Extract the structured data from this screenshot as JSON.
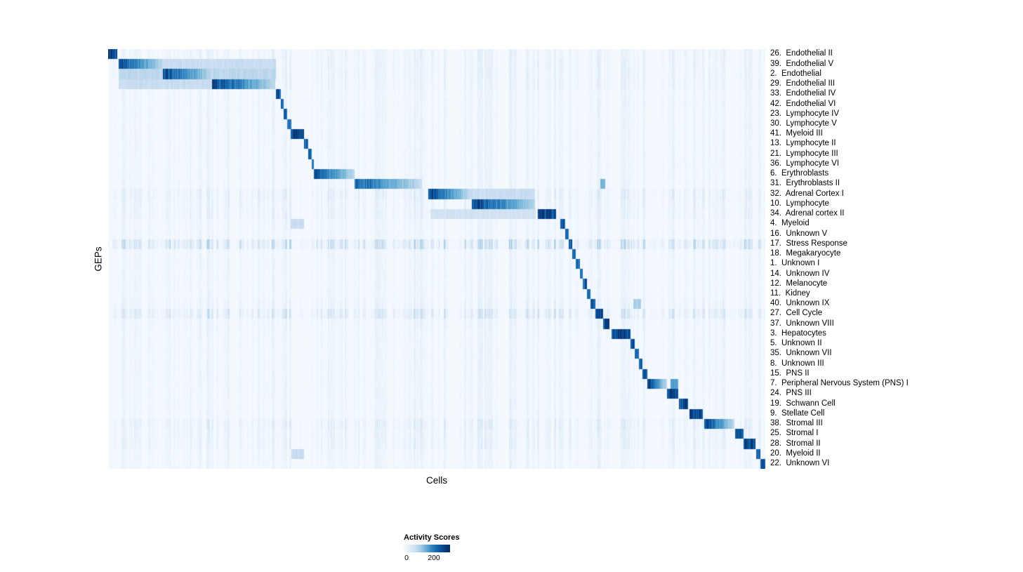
{
  "chart_data": {
    "type": "heatmap",
    "title": "",
    "xlabel": "Cells",
    "ylabel": "GEPs",
    "colorbar": {
      "title": "Activity Scores",
      "min_label": "0",
      "max_label": "200",
      "colormap": "Blues",
      "value_range": [
        0,
        230
      ]
    },
    "n_rows": 42,
    "rows": [
      {
        "label": "26.  Endothelial II",
        "bg": 0.07,
        "blocks": [
          [
            0.0,
            0.013,
            215
          ]
        ]
      },
      {
        "label": "39.  Endothelial V",
        "bg": 0.07,
        "blocks": [
          [
            0.015,
            0.083,
            210
          ],
          [
            0.083,
            0.255,
            55
          ]
        ]
      },
      {
        "label": "2.  Endothelial",
        "bg": 0.07,
        "blocks": [
          [
            0.015,
            0.083,
            65
          ],
          [
            0.083,
            0.158,
            210
          ],
          [
            0.158,
            0.255,
            65
          ]
        ]
      },
      {
        "label": "29.  Endothelial III",
        "bg": 0.07,
        "blocks": [
          [
            0.015,
            0.158,
            55
          ],
          [
            0.158,
            0.254,
            215
          ]
        ]
      },
      {
        "label": "33.  Endothelial IV",
        "bg": 0.05,
        "blocks": [
          [
            0.255,
            0.262,
            195
          ]
        ]
      },
      {
        "label": "42.  Endothelial VI",
        "bg": 0.05,
        "blocks": [
          [
            0.262,
            0.267,
            185
          ]
        ]
      },
      {
        "label": "23.  Lymphocyte IV",
        "bg": 0.05,
        "blocks": [
          [
            0.267,
            0.272,
            180
          ]
        ]
      },
      {
        "label": "30.  Lymphocyte V",
        "bg": 0.05,
        "blocks": [
          [
            0.272,
            0.278,
            190
          ]
        ]
      },
      {
        "label": "41.  Myeloid III",
        "bg": 0.05,
        "blocks": [
          [
            0.277,
            0.298,
            215
          ]
        ]
      },
      {
        "label": "13.  Lymphocyte II",
        "bg": 0.05,
        "blocks": [
          [
            0.298,
            0.304,
            190
          ]
        ]
      },
      {
        "label": "21.  Lymphocyte III",
        "bg": 0.05,
        "blocks": [
          [
            0.304,
            0.309,
            180
          ]
        ]
      },
      {
        "label": "36.  Lymphocyte VI",
        "bg": 0.05,
        "blocks": [
          [
            0.309,
            0.313,
            170
          ]
        ]
      },
      {
        "label": "6.  Erythroblasts",
        "bg": 0.05,
        "blocks": [
          [
            0.313,
            0.375,
            205
          ]
        ]
      },
      {
        "label": "31.  Erythroblasts II",
        "bg": 0.05,
        "blocks": [
          [
            0.375,
            0.477,
            190
          ],
          [
            0.748,
            0.756,
            110
          ]
        ]
      },
      {
        "label": "32.  Adrenal Cortex I",
        "bg": 0.1,
        "blocks": [
          [
            0.487,
            0.549,
            215
          ],
          [
            0.549,
            0.649,
            55
          ]
        ]
      },
      {
        "label": "10.  Lymphocyte",
        "bg": 0.08,
        "blocks": [
          [
            0.553,
            0.649,
            220
          ]
        ]
      },
      {
        "label": "34.  Adrenal cortex II",
        "bg": 0.08,
        "blocks": [
          [
            0.49,
            0.65,
            45
          ],
          [
            0.653,
            0.681,
            215
          ]
        ]
      },
      {
        "label": "4.  Myeloid",
        "bg": 0.05,
        "blocks": [
          [
            0.277,
            0.298,
            55
          ],
          [
            0.687,
            0.695,
            195
          ]
        ]
      },
      {
        "label": "16.  Unknown V",
        "bg": 0.05,
        "blocks": [
          [
            0.695,
            0.7,
            185
          ]
        ]
      },
      {
        "label": "17.  Stress Response",
        "bg": 0.22,
        "blocks": [
          [
            0.7,
            0.706,
            195
          ]
        ]
      },
      {
        "label": "18.  Megakaryocyte",
        "bg": 0.05,
        "blocks": [
          [
            0.706,
            0.711,
            190
          ]
        ]
      },
      {
        "label": "1.  Unknown I",
        "bg": 0.05,
        "blocks": [
          [
            0.711,
            0.717,
            180
          ]
        ]
      },
      {
        "label": "14.  Unknown IV",
        "bg": 0.05,
        "blocks": [
          [
            0.717,
            0.722,
            180
          ]
        ]
      },
      {
        "label": "12.  Melanocyte",
        "bg": 0.05,
        "blocks": [
          [
            0.722,
            0.728,
            195
          ]
        ]
      },
      {
        "label": "11.  Kidney",
        "bg": 0.05,
        "blocks": [
          [
            0.728,
            0.733,
            195
          ]
        ]
      },
      {
        "label": "40.  Unknown IX",
        "bg": 0.07,
        "blocks": [
          [
            0.733,
            0.741,
            205
          ],
          [
            0.799,
            0.81,
            80
          ]
        ]
      },
      {
        "label": "27.  Cell Cycle",
        "bg": 0.16,
        "blocks": [
          [
            0.741,
            0.753,
            205
          ]
        ]
      },
      {
        "label": "37.  Unknown VIII",
        "bg": 0.06,
        "blocks": [
          [
            0.753,
            0.762,
            205
          ]
        ]
      },
      {
        "label": "3.  Hepatocytes",
        "bg": 0.05,
        "blocks": [
          [
            0.765,
            0.794,
            215
          ]
        ]
      },
      {
        "label": "5.  Unknown II",
        "bg": 0.05,
        "blocks": [
          [
            0.794,
            0.801,
            195
          ]
        ]
      },
      {
        "label": "35.  Unknown VII",
        "bg": 0.05,
        "blocks": [
          [
            0.801,
            0.807,
            185
          ]
        ]
      },
      {
        "label": "8.  Unknown III",
        "bg": 0.05,
        "blocks": [
          [
            0.807,
            0.812,
            185
          ]
        ]
      },
      {
        "label": "15.  PNS II",
        "bg": 0.05,
        "blocks": [
          [
            0.812,
            0.82,
            195
          ]
        ]
      },
      {
        "label": "7.  Peripheral Nervous System (PNS) I",
        "bg": 0.05,
        "blocks": [
          [
            0.82,
            0.85,
            220
          ],
          [
            0.855,
            0.867,
            130
          ]
        ]
      },
      {
        "label": "24.  PNS III",
        "bg": 0.05,
        "blocks": [
          [
            0.85,
            0.867,
            215
          ]
        ]
      },
      {
        "label": "19.  Schwann Cell",
        "bg": 0.05,
        "blocks": [
          [
            0.868,
            0.882,
            205
          ]
        ]
      },
      {
        "label": "9.  Stellate Cell",
        "bg": 0.05,
        "blocks": [
          [
            0.884,
            0.904,
            215
          ]
        ]
      },
      {
        "label": "38.  Stromal III",
        "bg": 0.1,
        "blocks": [
          [
            0.906,
            0.952,
            215
          ]
        ]
      },
      {
        "label": "25.  Stromal I",
        "bg": 0.08,
        "blocks": [
          [
            0.954,
            0.966,
            205
          ]
        ]
      },
      {
        "label": "28.  Stromal II",
        "bg": 0.08,
        "blocks": [
          [
            0.966,
            0.984,
            215
          ]
        ]
      },
      {
        "label": "20.  Myeloid II",
        "bg": 0.05,
        "blocks": [
          [
            0.278,
            0.298,
            55
          ],
          [
            0.986,
            0.992,
            205
          ]
        ]
      },
      {
        "label": "22.  Unknown VI",
        "bg": 0.05,
        "blocks": [
          [
            0.992,
            1.0,
            215
          ]
        ]
      }
    ]
  }
}
